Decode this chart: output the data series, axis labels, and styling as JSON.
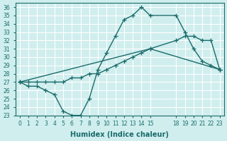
{
  "xlabel": "Humidex (Indice chaleur)",
  "bg_color": "#d0eeee",
  "grid_color": "#ffffff",
  "line_color": "#1a6b6b",
  "line1_x": [
    0,
    1,
    2,
    3,
    4,
    5,
    6,
    7,
    8,
    9,
    10,
    11,
    12,
    13,
    14,
    15,
    18,
    19,
    20,
    21,
    22,
    23
  ],
  "line1_y": [
    27.0,
    26.5,
    26.5,
    26.0,
    25.5,
    23.5,
    23.0,
    23.0,
    25.0,
    28.5,
    30.5,
    32.5,
    34.5,
    35.0,
    36.0,
    35.0,
    35.0,
    33.0,
    31.0,
    29.5,
    29.0,
    28.5
  ],
  "line2_x": [
    0,
    1,
    2,
    3,
    4,
    5,
    6,
    7,
    8,
    9,
    10,
    11,
    12,
    13,
    14,
    15,
    18,
    19,
    20,
    21,
    22,
    23
  ],
  "line2_y": [
    27.0,
    27.0,
    27.0,
    27.0,
    27.0,
    27.0,
    27.5,
    27.5,
    28.0,
    28.0,
    28.5,
    29.0,
    29.5,
    30.0,
    30.5,
    31.0,
    32.0,
    32.5,
    32.5,
    32.0,
    32.0,
    28.5
  ],
  "line3_x": [
    0,
    15,
    23
  ],
  "line3_y": [
    27.0,
    31.0,
    28.5
  ],
  "xlim": [
    -0.5,
    23.5
  ],
  "ylim": [
    23.0,
    36.5
  ],
  "xticks": [
    0,
    1,
    2,
    3,
    4,
    5,
    6,
    7,
    8,
    9,
    10,
    11,
    12,
    13,
    14,
    15,
    18,
    19,
    20,
    21,
    22,
    23
  ],
  "yticks": [
    23,
    24,
    25,
    26,
    27,
    28,
    29,
    30,
    31,
    32,
    33,
    34,
    35,
    36
  ]
}
